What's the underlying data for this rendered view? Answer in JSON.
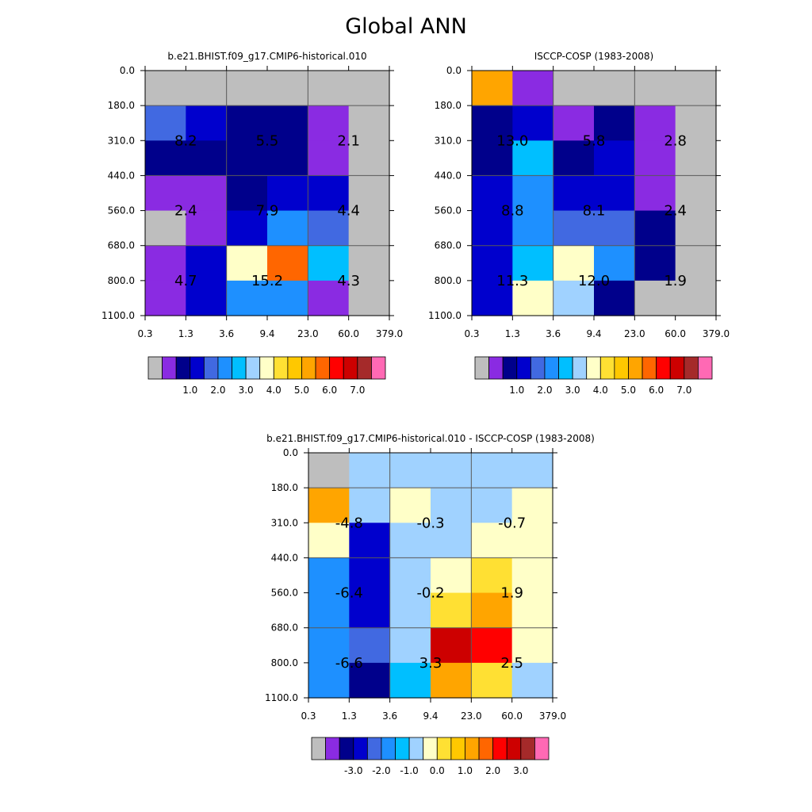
{
  "page": {
    "title": "Global ANN"
  },
  "chart_data": [
    {
      "type": "heatmap",
      "title": "b.e21.BHIST.f09_g17.CMIP6-historical.010",
      "x_ticks": [
        "0.3",
        "1.3",
        "3.6",
        "9.4",
        "23.0",
        "60.0",
        "379.0"
      ],
      "y_ticks": [
        "0.0",
        "180.0",
        "310.0",
        "440.0",
        "560.0",
        "680.0",
        "800.0",
        "1100.0"
      ],
      "cells": [
        [
          "missing",
          "missing",
          "missing",
          "missing",
          "missing",
          "missing"
        ],
        [
          "c5",
          "c3",
          "c2",
          "c2",
          "c1",
          "missing"
        ],
        [
          "c2",
          "c2",
          "c2",
          "c2",
          "c1",
          "missing"
        ],
        [
          "c1",
          "c1",
          "c2",
          "c3",
          "c3",
          "missing"
        ],
        [
          "missing",
          "c1",
          "c3",
          "c6",
          "c5",
          "missing"
        ],
        [
          "c1",
          "c3",
          "c9",
          "c13",
          "c7",
          "missing"
        ],
        [
          "c1",
          "c3",
          "c6",
          "c6",
          "c1",
          "missing"
        ]
      ],
      "annotations": [
        {
          "text": "8.2",
          "x": "1.3",
          "y": "310.0"
        },
        {
          "text": "5.5",
          "x": "9.4",
          "y": "310.0"
        },
        {
          "text": "2.1",
          "x": "60.0",
          "y": "310.0"
        },
        {
          "text": "2.4",
          "x": "1.3",
          "y": "560.0"
        },
        {
          "text": "7.9",
          "x": "9.4",
          "y": "560.0"
        },
        {
          "text": "4.4",
          "x": "60.0",
          "y": "560.0"
        },
        {
          "text": "4.7",
          "x": "1.3",
          "y": "800.0"
        },
        {
          "text": "15.2",
          "x": "9.4",
          "y": "800.0"
        },
        {
          "text": "4.3",
          "x": "60.0",
          "y": "800.0"
        }
      ],
      "colorbar_labels": [
        "1.0",
        "2.0",
        "3.0",
        "4.0",
        "5.0",
        "6.0",
        "7.0"
      ]
    },
    {
      "type": "heatmap",
      "title": "ISCCP-COSP (1983-2008)",
      "x_ticks": [
        "0.3",
        "1.3",
        "3.6",
        "9.4",
        "23.0",
        "60.0",
        "379.0"
      ],
      "y_ticks": [
        "0.0",
        "180.0",
        "310.0",
        "440.0",
        "560.0",
        "680.0",
        "800.0",
        "1100.0"
      ],
      "cells": [
        [
          "c12",
          "c1",
          "missing",
          "missing",
          "missing",
          "missing"
        ],
        [
          "c2",
          "c3",
          "c1",
          "c2",
          "c1",
          "missing"
        ],
        [
          "c2",
          "c7",
          "c2",
          "c3",
          "c1",
          "missing"
        ],
        [
          "c3",
          "c6",
          "c3",
          "c3",
          "c1",
          "missing"
        ],
        [
          "c3",
          "c6",
          "c5",
          "c5",
          "c2",
          "missing"
        ],
        [
          "c3",
          "c7",
          "c9",
          "c6",
          "c2",
          "missing"
        ],
        [
          "c3",
          "c9",
          "c8",
          "c2",
          "missing",
          "missing"
        ]
      ],
      "annotations": [
        {
          "text": "13.0",
          "x": "1.3",
          "y": "310.0"
        },
        {
          "text": "5.8",
          "x": "9.4",
          "y": "310.0"
        },
        {
          "text": "2.8",
          "x": "60.0",
          "y": "310.0"
        },
        {
          "text": "8.8",
          "x": "1.3",
          "y": "560.0"
        },
        {
          "text": "8.1",
          "x": "9.4",
          "y": "560.0"
        },
        {
          "text": "2.4",
          "x": "60.0",
          "y": "560.0"
        },
        {
          "text": "11.3",
          "x": "1.3",
          "y": "800.0"
        },
        {
          "text": "12.0",
          "x": "9.4",
          "y": "800.0"
        },
        {
          "text": "1.9",
          "x": "60.0",
          "y": "800.0"
        }
      ],
      "colorbar_labels": [
        "1.0",
        "2.0",
        "3.0",
        "4.0",
        "5.0",
        "6.0",
        "7.0"
      ]
    },
    {
      "type": "heatmap",
      "title": "b.e21.BHIST.f09_g17.CMIP6-historical.010 - ISCCP-COSP (1983-2008)",
      "x_ticks": [
        "0.3",
        "1.3",
        "3.6",
        "9.4",
        "23.0",
        "60.0",
        "379.0"
      ],
      "y_ticks": [
        "0.0",
        "180.0",
        "310.0",
        "440.0",
        "560.0",
        "680.0",
        "800.0",
        "1100.0"
      ],
      "cells": [
        [
          "missing",
          "c8",
          "c8",
          "c8",
          "c8",
          "c8"
        ],
        [
          "c12",
          "c8",
          "c9",
          "c8",
          "c8",
          "c9"
        ],
        [
          "c9",
          "c3",
          "c8",
          "c8",
          "c9",
          "c9"
        ],
        [
          "c6",
          "c3",
          "c8",
          "c9",
          "c10",
          "c9"
        ],
        [
          "c6",
          "c3",
          "c8",
          "c10",
          "c12",
          "c9"
        ],
        [
          "c6",
          "c5",
          "c8",
          "c16",
          "c15",
          "c9"
        ],
        [
          "c6",
          "c2",
          "c7",
          "c12",
          "c10",
          "c8"
        ]
      ],
      "annotations": [
        {
          "text": "-4.8",
          "x": "1.3",
          "y": "310.0"
        },
        {
          "text": "-0.3",
          "x": "9.4",
          "y": "310.0"
        },
        {
          "text": "-0.7",
          "x": "60.0",
          "y": "310.0"
        },
        {
          "text": "-6.4",
          "x": "1.3",
          "y": "560.0"
        },
        {
          "text": "-0.2",
          "x": "9.4",
          "y": "560.0"
        },
        {
          "text": "1.9",
          "x": "60.0",
          "y": "560.0"
        },
        {
          "text": "-6.6",
          "x": "1.3",
          "y": "800.0"
        },
        {
          "text": "3.3",
          "x": "9.4",
          "y": "800.0"
        },
        {
          "text": "2.5",
          "x": "60.0",
          "y": "800.0"
        }
      ],
      "colorbar_labels": [
        "-3.0",
        "-2.0",
        "-1.0",
        "0.0",
        "1.0",
        "2.0",
        "3.0"
      ]
    }
  ],
  "palette": {
    "missing": "#bebebe",
    "c1": "#8a2be2",
    "c2": "#00008b",
    "c3": "#0000cd",
    "c5": "#4169e1",
    "c6": "#1e90ff",
    "c7": "#00bfff",
    "c8": "#a0d2ff",
    "c9": "#ffffc8",
    "c10": "#ffe033",
    "c12": "#ffa500",
    "c13": "#ff6600",
    "c15": "#ff0000",
    "c16": "#cd0000",
    "colorbar": [
      "#bebebe",
      "#8a2be2",
      "#00008b",
      "#0000cd",
      "#4169e1",
      "#1e90ff",
      "#00bfff",
      "#a0d2ff",
      "#ffffc8",
      "#ffe033",
      "#ffc800",
      "#ffa500",
      "#ff6600",
      "#ff0000",
      "#cd0000",
      "#a52a2a",
      "#ff69b4"
    ],
    "grid": "#595959",
    "text": "#000000"
  }
}
